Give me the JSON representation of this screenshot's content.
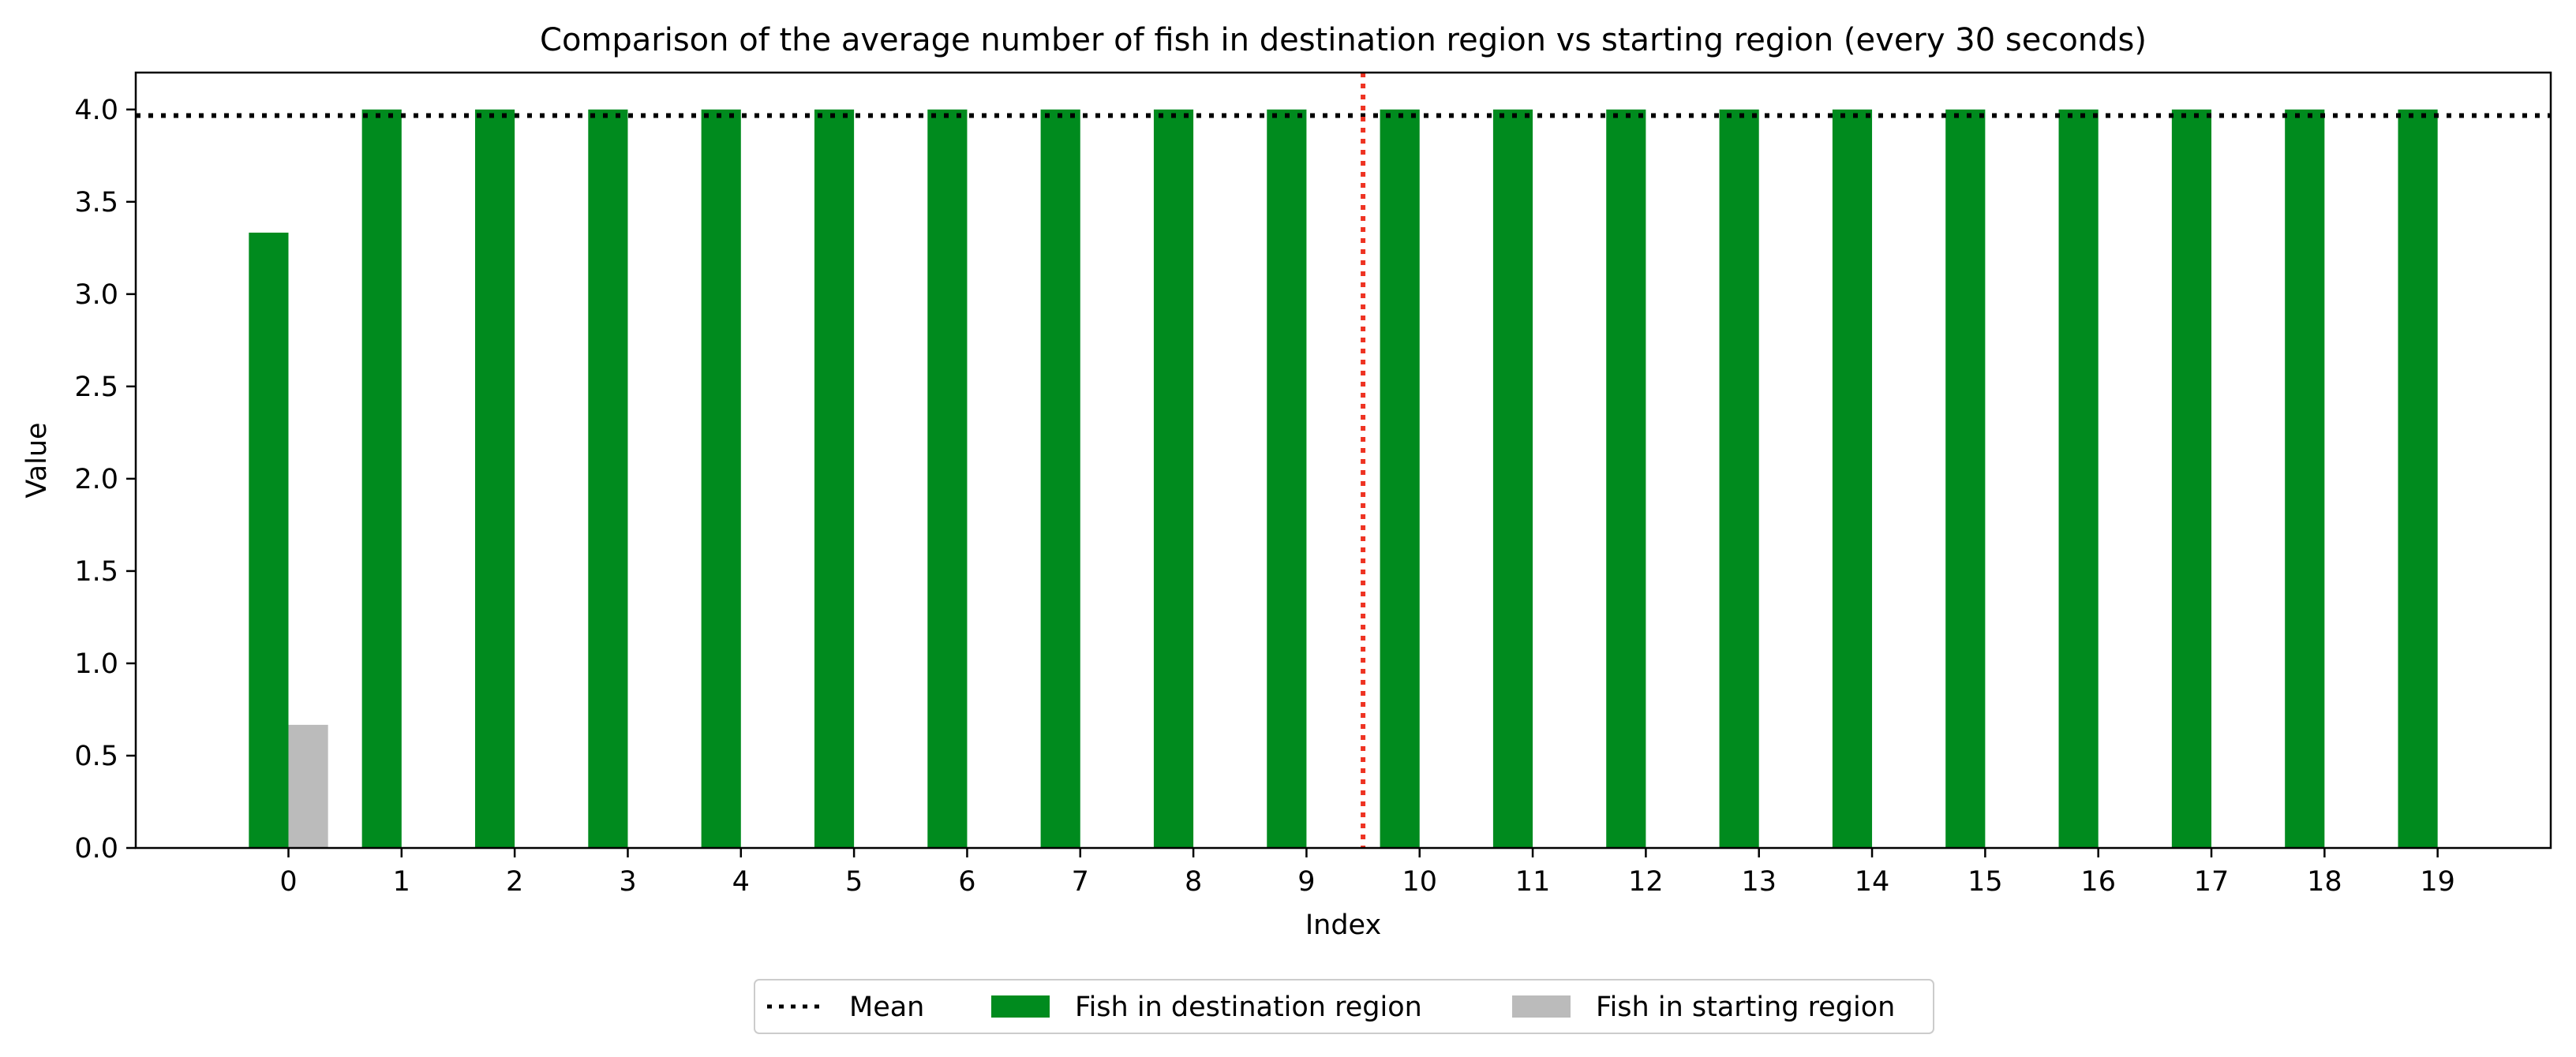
{
  "chart_data": {
    "type": "bar",
    "title": "Comparison of the average number of fish in destination region vs starting region (every 30 seconds)",
    "xlabel": "Index",
    "ylabel": "Value",
    "ylim": [
      0,
      4.2
    ],
    "xlim": [
      -1.35,
      20.0
    ],
    "yticks": [
      0.0,
      0.5,
      1.0,
      1.5,
      2.0,
      2.5,
      3.0,
      3.5,
      4.0
    ],
    "categories": [
      0,
      1,
      2,
      3,
      4,
      5,
      6,
      7,
      8,
      9,
      10,
      11,
      12,
      13,
      14,
      15,
      16,
      17,
      18,
      19
    ],
    "series": [
      {
        "name": "Fish in destination region",
        "color": "#008b1e",
        "values": [
          3.333,
          4.0,
          4.0,
          4.0,
          4.0,
          4.0,
          4.0,
          4.0,
          4.0,
          4.0,
          4.0,
          4.0,
          4.0,
          4.0,
          4.0,
          4.0,
          4.0,
          4.0,
          4.0,
          4.0
        ]
      },
      {
        "name": "Fish in starting region",
        "color": "#bbbbbb",
        "values": [
          0.667,
          0,
          0,
          0,
          0,
          0,
          0,
          0,
          0,
          0,
          0,
          0,
          0,
          0,
          0,
          0,
          0,
          0,
          0,
          0
        ]
      }
    ],
    "mean_line": {
      "name": "Mean",
      "value": 3.967,
      "color": "#000000",
      "style": "dotted"
    },
    "vertical_line": {
      "x": 9.5,
      "color": "#ee3322",
      "style": "dotted"
    },
    "grid": false,
    "legend": {
      "placement": "bottom-center",
      "ncol": 3
    }
  }
}
